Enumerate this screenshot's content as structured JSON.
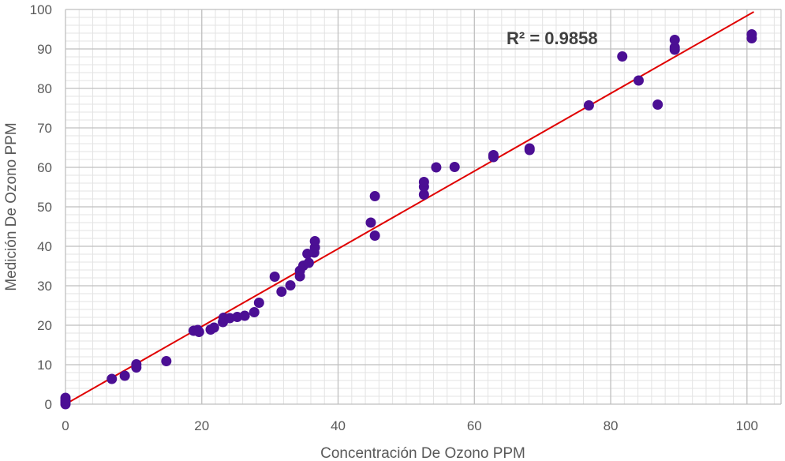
{
  "chart_data": {
    "type": "scatter",
    "xlabel": "Concentración De Ozono PPM",
    "ylabel": "Medición De Ozono PPM",
    "xlim": [
      0,
      105
    ],
    "ylim": [
      0,
      100
    ],
    "x_ticks": [
      0,
      20,
      40,
      60,
      80,
      100
    ],
    "y_ticks": [
      0,
      10,
      20,
      30,
      40,
      50,
      60,
      70,
      80,
      90,
      100
    ],
    "grid": "major and minor",
    "colors": {
      "points": "#4b0f94",
      "trendline": "#e00000",
      "major_grid": "#bfbfbf",
      "minor_grid": "#e3e3e3"
    },
    "annotation": "R² = 0.9858",
    "trendline": {
      "x": [
        0,
        101
      ],
      "y": [
        0,
        99.4
      ]
    },
    "points": [
      [
        0,
        0.0
      ],
      [
        0,
        0.5
      ],
      [
        0,
        1.0
      ],
      [
        0,
        1.6
      ],
      [
        6.8,
        6.4
      ],
      [
        8.7,
        7.2
      ],
      [
        10.4,
        9.3
      ],
      [
        10.4,
        10.1
      ],
      [
        14.8,
        10.9
      ],
      [
        18.8,
        18.6
      ],
      [
        19.4,
        18.8
      ],
      [
        19.6,
        18.3
      ],
      [
        21.3,
        18.9
      ],
      [
        21.8,
        19.4
      ],
      [
        23.1,
        20.8
      ],
      [
        23.2,
        21.9
      ],
      [
        24.1,
        21.8
      ],
      [
        25.2,
        22.1
      ],
      [
        26.3,
        22.4
      ],
      [
        27.7,
        23.3
      ],
      [
        28.4,
        25.7
      ],
      [
        30.7,
        32.3
      ],
      [
        31.7,
        28.5
      ],
      [
        33.0,
        30.1
      ],
      [
        34.4,
        32.4
      ],
      [
        34.4,
        33.8
      ],
      [
        34.9,
        35.1
      ],
      [
        35.7,
        35.8
      ],
      [
        35.5,
        38.1
      ],
      [
        36.5,
        38.4
      ],
      [
        36.6,
        39.7
      ],
      [
        36.6,
        41.3
      ],
      [
        44.8,
        46.0
      ],
      [
        45.4,
        42.7
      ],
      [
        45.4,
        52.7
      ],
      [
        52.6,
        53.1
      ],
      [
        52.6,
        55.1
      ],
      [
        52.6,
        56.3
      ],
      [
        54.4,
        60.0
      ],
      [
        57.1,
        60.1
      ],
      [
        62.8,
        62.6
      ],
      [
        62.8,
        63.1
      ],
      [
        68.1,
        64.4
      ],
      [
        68.1,
        64.8
      ],
      [
        76.8,
        75.7
      ],
      [
        81.7,
        88.1
      ],
      [
        84.1,
        82.0
      ],
      [
        86.9,
        75.9
      ],
      [
        89.4,
        89.8
      ],
      [
        89.4,
        90.4
      ],
      [
        89.4,
        92.3
      ],
      [
        100.7,
        92.7
      ],
      [
        100.7,
        93.7
      ]
    ]
  }
}
